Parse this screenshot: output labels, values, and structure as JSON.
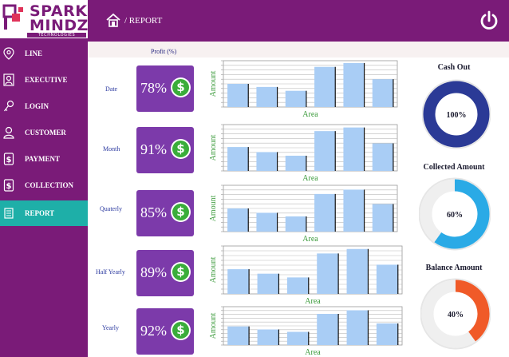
{
  "brand": {
    "line1": "SPARK",
    "line2": "MINDZ",
    "tagline": "TECHNOLOGIES"
  },
  "header": {
    "breadcrumb": "/ REPORT",
    "home_icon": "home-icon",
    "power_icon": "power-icon"
  },
  "sidebar": {
    "items": [
      {
        "label": "LINE",
        "icon": "location-pin-icon",
        "active": false
      },
      {
        "label": "EXECUTIVE",
        "icon": "person-card-icon",
        "active": false
      },
      {
        "label": "LOGIN",
        "icon": "key-icon",
        "active": false
      },
      {
        "label": "CUSTOMER",
        "icon": "user-icon",
        "active": false
      },
      {
        "label": "PAYMENT",
        "icon": "dollar-doc-icon",
        "active": false
      },
      {
        "label": "COLLECTION",
        "icon": "dollar-doc-icon",
        "active": false
      },
      {
        "label": "REPORT",
        "icon": "report-icon",
        "active": true
      }
    ]
  },
  "profit_header": "Profit (%)",
  "rows": [
    {
      "label": "Date",
      "percent": "78%"
    },
    {
      "label": "Month",
      "percent": "91%"
    },
    {
      "label": "Quaterly",
      "percent": "85%"
    },
    {
      "label": "Half Yearly",
      "percent": "89%"
    },
    {
      "label": "Yearly",
      "percent": "92%"
    }
  ],
  "chart_data": [
    {
      "type": "bar",
      "xlabel": "Area",
      "ylabel": "Amount",
      "values": [
        30,
        26,
        21,
        52,
        57,
        36
      ],
      "ylim": [
        0,
        60
      ]
    },
    {
      "type": "bar",
      "xlabel": "Area",
      "ylabel": "Amount",
      "values": [
        33,
        26,
        21,
        55,
        60,
        38
      ],
      "ylim": [
        0,
        64
      ]
    },
    {
      "type": "bar",
      "xlabel": "Area",
      "ylabel": "Amount",
      "values": [
        32,
        26,
        21,
        52,
        58,
        38
      ],
      "ylim": [
        0,
        64
      ]
    },
    {
      "type": "bar",
      "xlabel": "Area",
      "ylabel": "Amount",
      "values": [
        33,
        27,
        22,
        54,
        60,
        39
      ],
      "ylim": [
        0,
        64
      ]
    },
    {
      "type": "bar",
      "xlabel": "Area",
      "ylabel": "Amount",
      "values": [
        31,
        26,
        22,
        52,
        58,
        36
      ],
      "ylim": [
        0,
        64
      ]
    }
  ],
  "gauges": [
    {
      "title": "Cash Out",
      "value_label": "100%",
      "fraction": 1.0,
      "color": "#2b3a96"
    },
    {
      "title": "Collected Amount",
      "value_label": "60%",
      "fraction": 0.6,
      "color": "#2aaae6"
    },
    {
      "title": "Balance Amount",
      "value_label": "40%",
      "fraction": 0.4,
      "color": "#f05a28"
    }
  ],
  "colors": {
    "sidebar": "#7a1b78",
    "active": "#1eafa8",
    "card": "#7c3aaa",
    "bar": "#a9cdf5"
  }
}
